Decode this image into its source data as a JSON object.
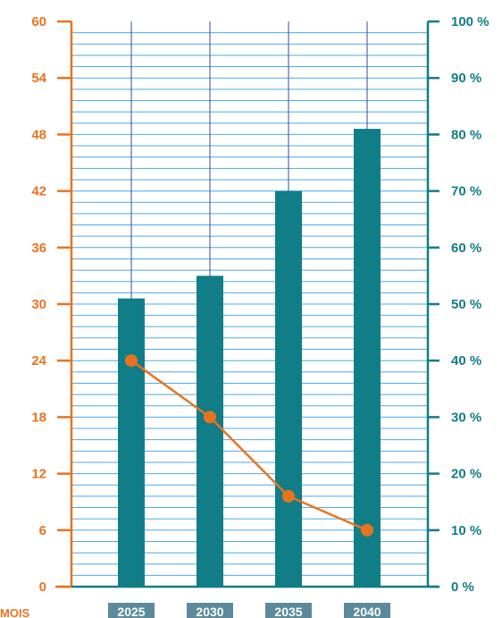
{
  "chart_data": {
    "type": "bar",
    "categories": [
      "2025",
      "2030",
      "2035",
      "2040"
    ],
    "xlabel": "MOIS",
    "series": [
      {
        "type": "bar",
        "axis": "right",
        "values": [
          51,
          55,
          70,
          81
        ],
        "color": "#117D86"
      },
      {
        "type": "line",
        "axis": "left",
        "values": [
          24,
          18,
          9.6,
          6
        ],
        "color": "#E8731F"
      }
    ],
    "y_left": {
      "ylim": [
        0,
        60
      ],
      "ticks": [
        "0",
        "6",
        "12",
        "18",
        "24",
        "30",
        "36",
        "42",
        "48",
        "54",
        "60"
      ],
      "color": "#E8731F"
    },
    "y_right": {
      "ylim": [
        0,
        100
      ],
      "ticks": [
        "0 %",
        "10 %",
        "20 %",
        "30 %",
        "40 %",
        "50 %",
        "60 %",
        "70 %",
        "80 %",
        "90 %",
        "100 %"
      ],
      "color": "#117D86"
    },
    "grid": true,
    "grid_color": "#4EA8E4"
  }
}
